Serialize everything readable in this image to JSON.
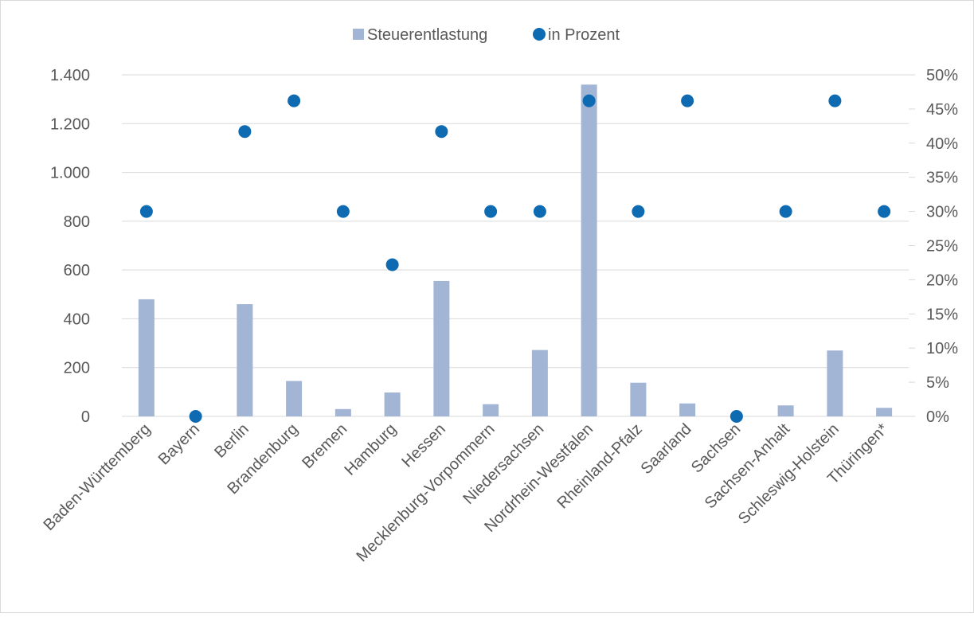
{
  "chart_data": {
    "type": "bar",
    "categories": [
      "Baden-Württemberg",
      "Bayern",
      "Berlin",
      "Brandenburg",
      "Bremen",
      "Hamburg",
      "Hessen",
      "Mecklenburg-Vorpommern",
      "Niedersachsen",
      "Nordrhein-Westfalen",
      "Rheinland-Pfalz",
      "Saarland",
      "Sachsen",
      "Sachsen-Anhalt",
      "Schleswig-Holstein",
      "Thüringen*"
    ],
    "series": [
      {
        "name": "Steuerentlastung",
        "type": "bar",
        "axis": "left",
        "color": "#a3b5d5",
        "values": [
          480,
          0,
          460,
          145,
          30,
          98,
          555,
          50,
          272,
          1360,
          138,
          53,
          0,
          45,
          270,
          35
        ]
      },
      {
        "name": "in Prozent",
        "type": "scatter",
        "axis": "right",
        "color": "#0e6ab1",
        "values": [
          30,
          0,
          41.7,
          46.2,
          30,
          22.2,
          41.7,
          30,
          30,
          46.2,
          30,
          46.2,
          0,
          30,
          46.2,
          30
        ]
      }
    ],
    "y_left": {
      "ylim": [
        0,
        1400
      ],
      "ticks": [
        0,
        200,
        400,
        600,
        800,
        1000,
        1200,
        1400
      ],
      "tick_labels": [
        "0",
        "200",
        "400",
        "600",
        "800",
        "1.000",
        "1.200",
        "1.400"
      ]
    },
    "y_right": {
      "ylim": [
        0,
        50
      ],
      "ticks": [
        0,
        5,
        10,
        15,
        20,
        25,
        30,
        35,
        40,
        45,
        50
      ],
      "tick_labels": [
        "0%",
        "5%",
        "10%",
        "15%",
        "20%",
        "25%",
        "30%",
        "35%",
        "40%",
        "45%",
        "50%"
      ]
    },
    "grid": true,
    "legend_position": "top",
    "title": "",
    "xlabel": "",
    "ylabel": ""
  }
}
